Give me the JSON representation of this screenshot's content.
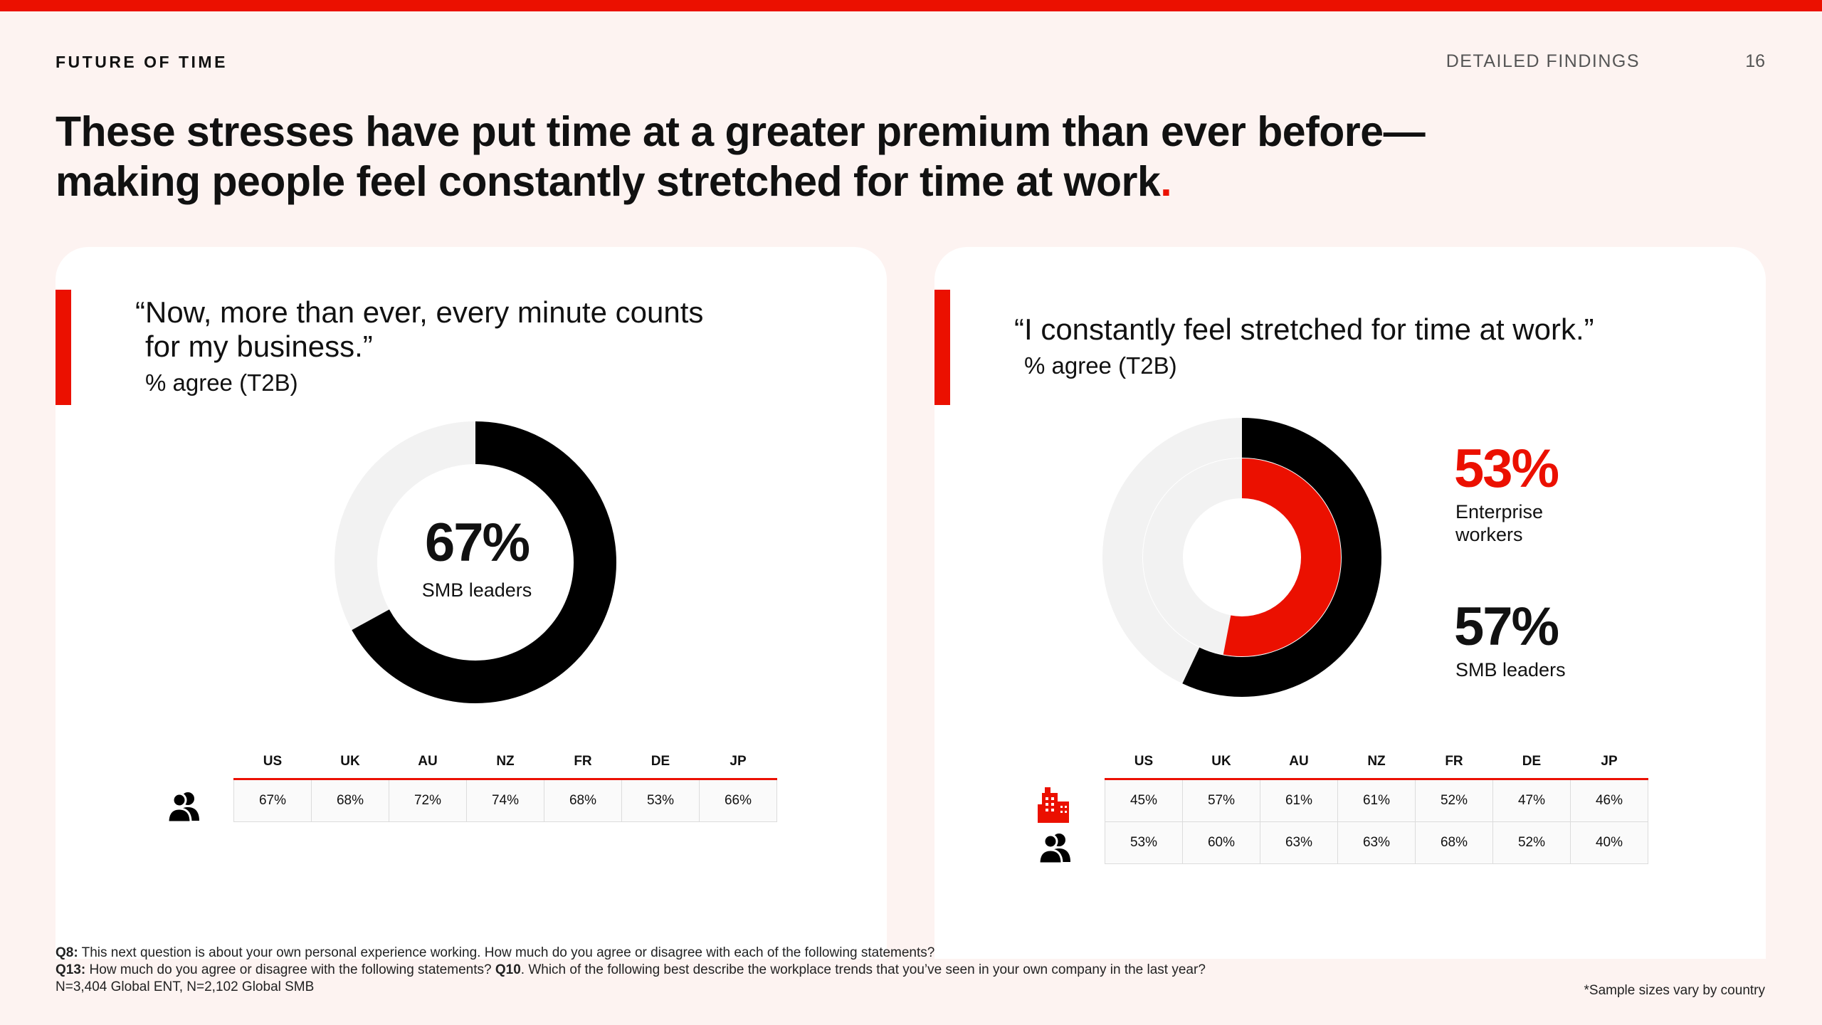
{
  "header": {
    "brand": "FUTURE OF TIME",
    "section": "DETAILED FINDINGS",
    "page_number": "16",
    "headline_line1": "These stresses have put time at a greater premium than ever before—",
    "headline_line2": "making people feel constantly stretched for time at work",
    "headline_dot": "."
  },
  "colors": {
    "accent": "#EB1000",
    "black": "#000000",
    "track": "#F2F2F2",
    "background": "#FDF3F1"
  },
  "left_card": {
    "quote_line1": "“Now, more than ever, every minute counts",
    "quote_line2": "for my business.”",
    "subtitle": "% agree (T2B)",
    "value_label": "67%",
    "series_label": "SMB leaders",
    "icon": "smb-leaders-icon"
  },
  "right_card": {
    "quote": "“I constantly feel stretched for time at work.”",
    "subtitle": "% agree (T2B)",
    "ent_value_label": "53%",
    "ent_label_line1": "Enterprise",
    "ent_label_line2": "workers",
    "smb_value_label": "57%",
    "smb_label": "SMB leaders",
    "icons": [
      "enterprise-building-icon",
      "smb-leaders-icon"
    ]
  },
  "chart_data": [
    {
      "type": "pie",
      "subtype": "donut",
      "categories": [
        "SMB leaders"
      ],
      "values": [
        67
      ],
      "max": 100
    },
    {
      "type": "pie",
      "subtype": "concentric-donut",
      "series": [
        {
          "name": "SMB leaders",
          "value": 57,
          "color": "#000000",
          "ring": "outer"
        },
        {
          "name": "Enterprise workers",
          "value": 53,
          "color": "#EB1000",
          "ring": "inner"
        }
      ],
      "max": 100
    },
    {
      "type": "table",
      "columns": [
        "US",
        "UK",
        "AU",
        "NZ",
        "FR",
        "DE",
        "JP"
      ],
      "rows": [
        {
          "icon": "smb-leaders-icon",
          "values": [
            "67%",
            "68%",
            "72%",
            "74%",
            "68%",
            "53%",
            "66%"
          ]
        }
      ]
    },
    {
      "type": "table",
      "columns": [
        "US",
        "UK",
        "AU",
        "NZ",
        "FR",
        "DE",
        "JP"
      ],
      "rows": [
        {
          "icon": "enterprise-building-icon",
          "values": [
            "45%",
            "57%",
            "61%",
            "61%",
            "52%",
            "47%",
            "46%"
          ]
        },
        {
          "icon": "smb-leaders-icon",
          "values": [
            "53%",
            "60%",
            "63%",
            "63%",
            "68%",
            "52%",
            "40%"
          ]
        }
      ]
    }
  ],
  "footer": {
    "q8_label": "Q8:",
    "q8_text": " This next question is about your own personal experience working. How much do you agree or disagree with each of the following statements?",
    "q13_label": "Q13:",
    "q13_text": " How much do you agree or disagree with the following statements? ",
    "q10_label": "Q10",
    "q10_text": ". Which of the following best describe the workplace trends that you’ve seen in your own company in the last year?",
    "sample_line": "N=3,404 Global ENT, N=2,102 Global SMB",
    "sample_note": "*Sample sizes vary by country"
  }
}
